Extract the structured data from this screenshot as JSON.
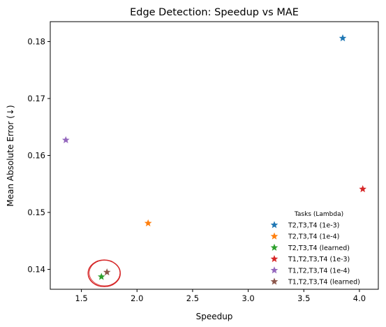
{
  "chart_data": {
    "type": "scatter",
    "title": "Edge Detection: Speedup vs MAE",
    "xlabel": "Speedup",
    "ylabel": "Mean Absolute Error (↓)",
    "xlim": [
      1.22,
      4.17
    ],
    "ylim": [
      0.1365,
      0.1835
    ],
    "xticks": [
      1.5,
      2.0,
      2.5,
      3.0,
      3.5,
      4.0
    ],
    "xtick_labels": [
      "1.5",
      "2.0",
      "2.5",
      "3.0",
      "3.5",
      "4.0"
    ],
    "yticks": [
      0.14,
      0.15,
      0.16,
      0.17,
      0.18
    ],
    "ytick_labels": [
      "0.14",
      "0.15",
      "0.16",
      "0.17",
      "0.18"
    ],
    "grid": false,
    "marker": "star",
    "legend": {
      "title": "Tasks (Lambda)",
      "position": "lower-right"
    },
    "series": [
      {
        "name": "T2,T3,T4 (1e-3)",
        "color": "#1f77b4",
        "x": 3.85,
        "y": 0.1806
      },
      {
        "name": "T2,T3,T4 (1e-4)",
        "color": "#ff7f0e",
        "x": 2.1,
        "y": 0.1481
      },
      {
        "name": "T2,T3,T4 (learned)",
        "color": "#2ca02c",
        "x": 1.68,
        "y": 0.1387
      },
      {
        "name": "T1,T2,T3,T4 (1e-3)",
        "color": "#d62728",
        "x": 4.03,
        "y": 0.1541
      },
      {
        "name": "T1,T2,T3,T4 (1e-4)",
        "color": "#9467bd",
        "x": 1.36,
        "y": 0.1627
      },
      {
        "name": "T1,T2,T3,T4 (learned)",
        "color": "#8c564b",
        "x": 1.73,
        "y": 0.1395
      }
    ],
    "annotations": [
      {
        "type": "circle",
        "color": "#d62728",
        "x": 1.705,
        "y": 0.1393
      }
    ]
  }
}
